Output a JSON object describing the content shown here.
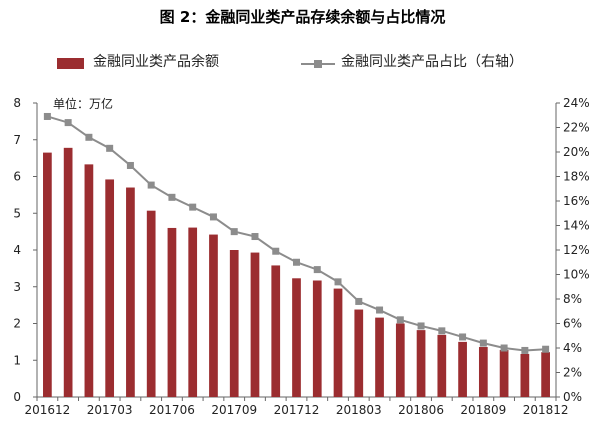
{
  "chart_data": {
    "type": "bar-line",
    "title": "图 2：金融同业类产品存续余额与占比情况",
    "unit_label": "单位：万亿",
    "legend_position": "top",
    "categories": [
      "201612",
      "201701",
      "201702",
      "201703",
      "201704",
      "201705",
      "201706",
      "201707",
      "201708",
      "201709",
      "201710",
      "201711",
      "201712",
      "201801",
      "201802",
      "201803",
      "201804",
      "201805",
      "201806",
      "201807",
      "201808",
      "201809",
      "201810",
      "201811",
      "201812"
    ],
    "x_tick_labels": [
      "201612",
      "201703",
      "201706",
      "201709",
      "201712",
      "201803",
      "201806",
      "201809",
      "201812"
    ],
    "y_left": {
      "min": 0,
      "max": 8,
      "ticks": [
        "0",
        "1",
        "2",
        "3",
        "4",
        "5",
        "6",
        "7",
        "8"
      ]
    },
    "y_right": {
      "min": 0,
      "max": 24,
      "ticks": [
        "0%",
        "2%",
        "4%",
        "6%",
        "8%",
        "10%",
        "12%",
        "14%",
        "16%",
        "18%",
        "20%",
        "22%",
        "24%"
      ]
    },
    "series": [
      {
        "name": "金融同业类产品余额",
        "kind": "bar",
        "axis": "left",
        "color": "#9b2d30",
        "values": [
          6.65,
          6.78,
          6.33,
          5.92,
          5.7,
          5.07,
          4.6,
          4.61,
          4.42,
          4.0,
          3.93,
          3.58,
          3.23,
          3.17,
          2.95,
          2.38,
          2.16,
          2.0,
          1.82,
          1.69,
          1.5,
          1.36,
          1.28,
          1.17,
          1.22
        ]
      },
      {
        "name": "金融同业类产品占比（右轴）",
        "kind": "line",
        "axis": "right",
        "color": "#8c8c8c",
        "values": [
          22.9,
          22.4,
          21.2,
          20.3,
          18.9,
          17.3,
          16.3,
          15.5,
          14.7,
          13.5,
          13.1,
          11.9,
          11.0,
          10.4,
          9.4,
          7.8,
          7.1,
          6.3,
          5.8,
          5.4,
          4.9,
          4.4,
          4.0,
          3.8,
          3.9
        ]
      }
    ]
  }
}
